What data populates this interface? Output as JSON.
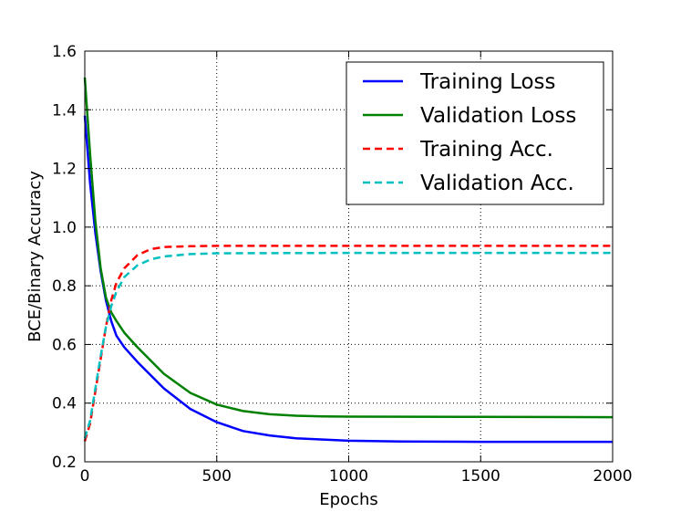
{
  "chart_data": {
    "type": "line",
    "title": "",
    "xlabel": "Epochs",
    "ylabel": "BCE/Binary Accuracy",
    "xlim": [
      0,
      2000
    ],
    "ylim": [
      0.2,
      1.6
    ],
    "xticks": [
      0,
      500,
      1000,
      1500,
      2000
    ],
    "xtick_labels": [
      "0",
      "500",
      "1000",
      "1500",
      "2000"
    ],
    "yticks": [
      0.2,
      0.4,
      0.6,
      0.8,
      1.0,
      1.2,
      1.4,
      1.6
    ],
    "ytick_labels": [
      "0.2",
      "0.4",
      "0.6",
      "0.8",
      "1.0",
      "1.2",
      "1.4",
      "1.6"
    ],
    "grid": true,
    "legend_position": "top-right",
    "series": [
      {
        "name": "Training Loss",
        "color": "#0000ff",
        "style": "solid",
        "x": [
          0,
          20,
          40,
          60,
          80,
          100,
          120,
          150,
          200,
          300,
          400,
          500,
          600,
          700,
          800,
          1000,
          1200,
          1500,
          2000
        ],
        "y": [
          1.38,
          1.15,
          0.98,
          0.85,
          0.75,
          0.68,
          0.63,
          0.59,
          0.54,
          0.45,
          0.38,
          0.335,
          0.305,
          0.29,
          0.28,
          0.272,
          0.269,
          0.268,
          0.268
        ]
      },
      {
        "name": "Validation Loss",
        "color": "#008000",
        "style": "solid",
        "x": [
          0,
          20,
          40,
          60,
          80,
          100,
          120,
          150,
          200,
          300,
          400,
          500,
          600,
          700,
          800,
          900,
          1000,
          1500,
          2000
        ],
        "y": [
          1.51,
          1.25,
          1.02,
          0.86,
          0.76,
          0.71,
          0.68,
          0.64,
          0.59,
          0.5,
          0.435,
          0.395,
          0.373,
          0.362,
          0.357,
          0.355,
          0.354,
          0.353,
          0.352
        ]
      },
      {
        "name": "Training Acc.",
        "color": "#ff0000",
        "style": "dashed",
        "x": [
          0,
          20,
          40,
          60,
          80,
          100,
          120,
          150,
          200,
          250,
          300,
          400,
          500,
          1000,
          2000
        ],
        "y": [
          0.27,
          0.33,
          0.44,
          0.55,
          0.66,
          0.75,
          0.81,
          0.86,
          0.905,
          0.925,
          0.932,
          0.935,
          0.936,
          0.936,
          0.936
        ]
      },
      {
        "name": "Validation Acc.",
        "color": "#00bfbf",
        "style": "dashed",
        "x": [
          0,
          20,
          40,
          60,
          80,
          100,
          120,
          150,
          200,
          250,
          300,
          400,
          500,
          1000,
          2000
        ],
        "y": [
          0.28,
          0.34,
          0.45,
          0.56,
          0.66,
          0.73,
          0.78,
          0.83,
          0.87,
          0.89,
          0.9,
          0.908,
          0.911,
          0.912,
          0.912
        ]
      }
    ]
  }
}
